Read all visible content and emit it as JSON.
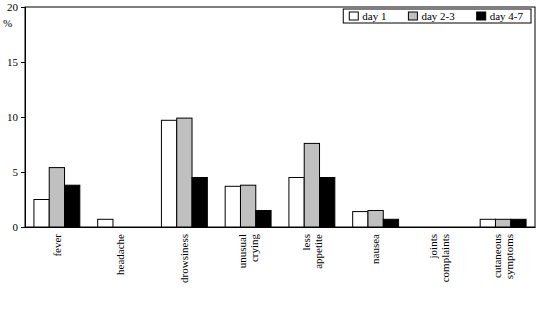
{
  "chart_data": {
    "type": "bar",
    "y_label": "%",
    "categories": [
      "fever",
      "headache",
      "drowsiness",
      "unusual crying",
      "less appetite",
      "nausea",
      "joints complaints",
      "cutaneous symptoms"
    ],
    "series": [
      {
        "name": "day 1",
        "color": "#ffffff",
        "values": [
          2.5,
          0.7,
          9.7,
          3.7,
          4.5,
          1.4,
          0,
          0.7
        ]
      },
      {
        "name": "day 2-3",
        "color": "#c0c0c0",
        "values": [
          5.4,
          0,
          9.9,
          3.8,
          7.6,
          1.5,
          0,
          0.7
        ]
      },
      {
        "name": "day 4-7",
        "color": "#000000",
        "values": [
          3.8,
          0,
          4.5,
          1.5,
          4.5,
          0.7,
          0,
          0.7
        ]
      }
    ],
    "ylim": [
      0,
      20
    ],
    "yticks": [
      0,
      5,
      10,
      15,
      20
    ],
    "grid": false,
    "legend": "top-right"
  }
}
